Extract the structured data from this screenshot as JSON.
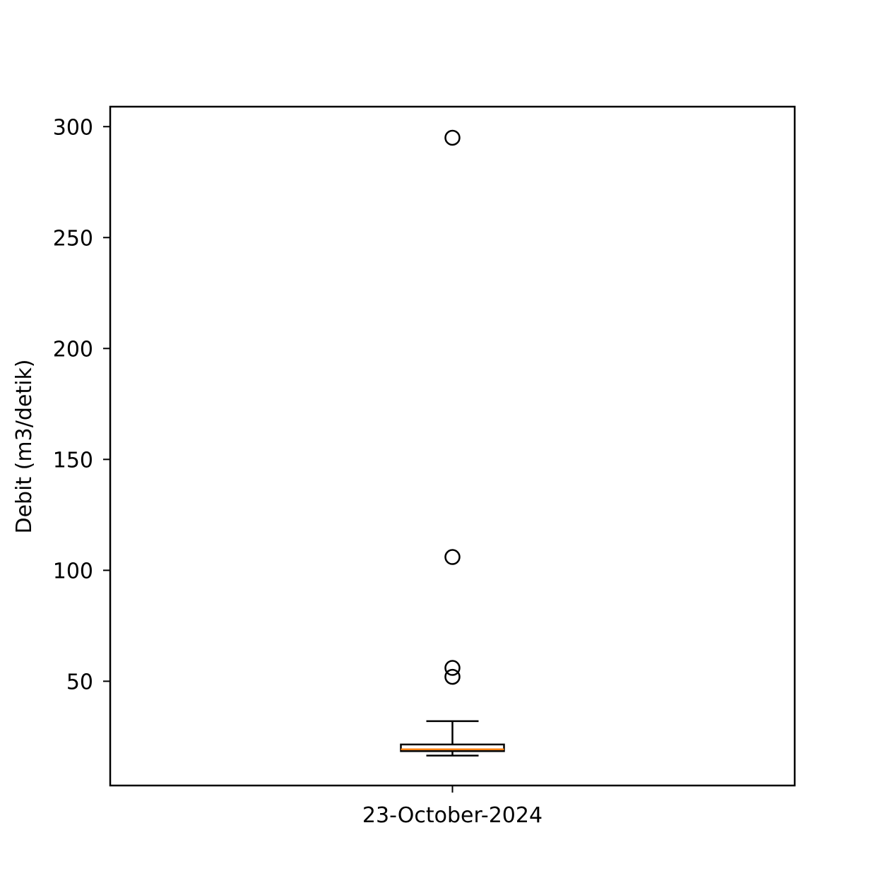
{
  "chart_data": {
    "type": "boxplot",
    "title": "",
    "xlabel": "",
    "ylabel": "Debit (m3/detik)",
    "categories": [
      "23-October-2024"
    ],
    "ylim": [
      3,
      309
    ],
    "yticks": [
      50,
      100,
      150,
      200,
      250,
      300
    ],
    "ytick_labels": [
      "50",
      "100",
      "150",
      "200",
      "250",
      "300"
    ],
    "boxes": [
      {
        "category": "23-October-2024",
        "whisker_low": 16.5,
        "q1": 18.5,
        "median": 19.3,
        "q3": 21.5,
        "whisker_high": 32,
        "outliers": [
          52,
          56,
          106,
          295
        ]
      }
    ],
    "grid": false,
    "legend": "none",
    "colors": {
      "box": "#000000",
      "median": "#ff7f0e",
      "outlier_edge": "#000000",
      "axes": "#000000"
    }
  }
}
